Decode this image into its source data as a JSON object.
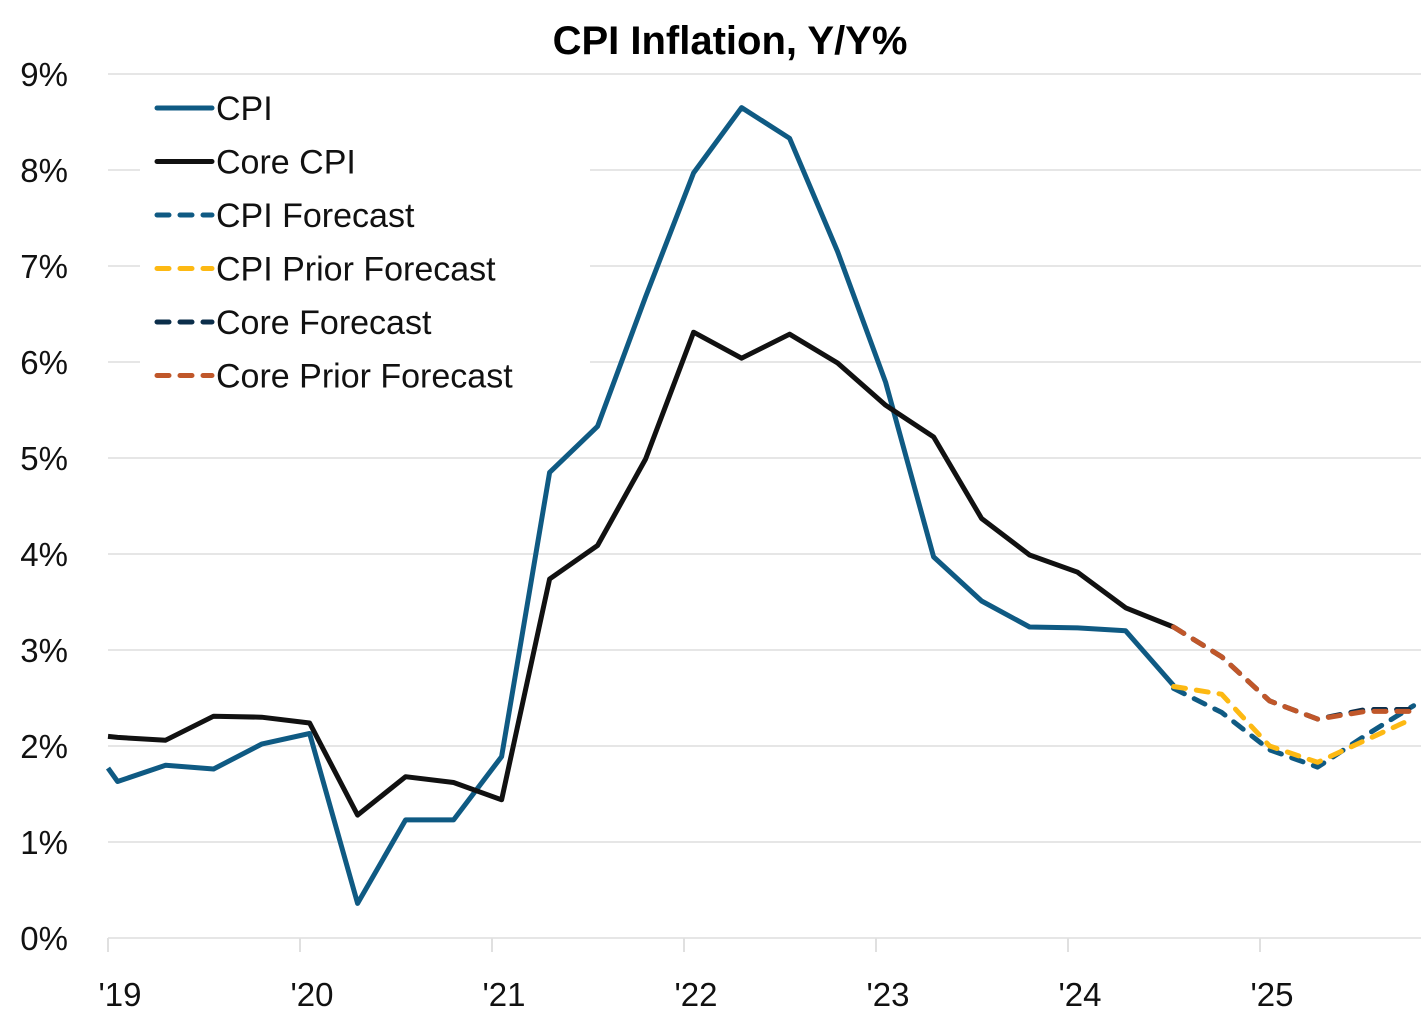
{
  "chart_data": {
    "type": "line",
    "title": "CPI Inflation, Y/Y%",
    "xlabel": "",
    "ylabel": "",
    "ylim": [
      0,
      9
    ],
    "xlim": [
      2019.0,
      2025.82
    ],
    "grid": true,
    "legend_position": "top-left",
    "yticks": [
      0,
      1,
      2,
      3,
      4,
      5,
      6,
      7,
      8,
      9
    ],
    "ytick_labels": [
      "0%",
      "1%",
      "2%",
      "3%",
      "4%",
      "5%",
      "6%",
      "7%",
      "8%",
      "9%"
    ],
    "xticks": [
      2019,
      2020,
      2021,
      2022,
      2023,
      2024,
      2025
    ],
    "xtick_labels": [
      "'19",
      "'20",
      "'21",
      "'22",
      "'23",
      "'24",
      "'25"
    ],
    "series": [
      {
        "name": "CPI",
        "color": "#0F5A83",
        "dash": "solid",
        "x": [
          2019.0,
          2019.05,
          2019.3,
          2019.55,
          2019.8,
          2020.05,
          2020.3,
          2020.55,
          2020.8,
          2021.05,
          2021.3,
          2021.55,
          2021.8,
          2022.05,
          2022.3,
          2022.55,
          2022.8,
          2023.05,
          2023.3,
          2023.55,
          2023.8,
          2024.05,
          2024.3,
          2024.55
        ],
        "values": [
          1.77,
          1.63,
          1.8,
          1.76,
          2.02,
          2.13,
          0.36,
          1.23,
          1.23,
          1.89,
          4.85,
          5.33,
          6.68,
          7.97,
          8.65,
          8.33,
          7.15,
          5.79,
          3.97,
          3.51,
          3.24,
          3.23,
          3.2,
          2.63
        ]
      },
      {
        "name": "Core CPI",
        "color": "#111111",
        "dash": "solid",
        "x": [
          2019.0,
          2019.05,
          2019.3,
          2019.55,
          2019.8,
          2020.05,
          2020.3,
          2020.55,
          2020.8,
          2021.05,
          2021.3,
          2021.55,
          2021.8,
          2022.05,
          2022.3,
          2022.55,
          2022.8,
          2023.05,
          2023.3,
          2023.55,
          2023.8,
          2024.05,
          2024.3,
          2024.55
        ],
        "values": [
          2.1,
          2.09,
          2.06,
          2.31,
          2.3,
          2.24,
          1.28,
          1.68,
          1.62,
          1.44,
          3.74,
          4.09,
          4.99,
          6.31,
          6.04,
          6.29,
          5.99,
          5.55,
          5.22,
          4.37,
          3.99,
          3.81,
          3.44,
          3.24
        ]
      },
      {
        "name": "CPI Forecast",
        "color": "#0F5A83",
        "dash": "dashed",
        "x": [
          2024.55,
          2024.8,
          2025.05,
          2025.3,
          2025.55,
          2025.8
        ],
        "values": [
          2.6,
          2.35,
          1.96,
          1.78,
          2.11,
          2.42
        ]
      },
      {
        "name": "CPI Prior Forecast",
        "color": "#FDB913",
        "dash": "dashed",
        "x": [
          2024.55,
          2024.8,
          2025.05,
          2025.3,
          2025.55,
          2025.8
        ],
        "values": [
          2.62,
          2.54,
          2.0,
          1.83,
          2.06,
          2.29
        ]
      },
      {
        "name": "Core Forecast",
        "color": "#0B2E4A",
        "dash": "dashed",
        "x": [
          2024.55,
          2024.8,
          2025.05,
          2025.3,
          2025.55,
          2025.8
        ],
        "values": [
          3.24,
          2.93,
          2.47,
          2.28,
          2.38,
          2.38
        ]
      },
      {
        "name": "Core Prior Forecast",
        "color": "#C0572A",
        "dash": "dashed",
        "x": [
          2024.55,
          2024.8,
          2025.05,
          2025.3,
          2025.55,
          2025.8
        ],
        "values": [
          3.24,
          2.93,
          2.47,
          2.28,
          2.36,
          2.36
        ]
      }
    ]
  }
}
